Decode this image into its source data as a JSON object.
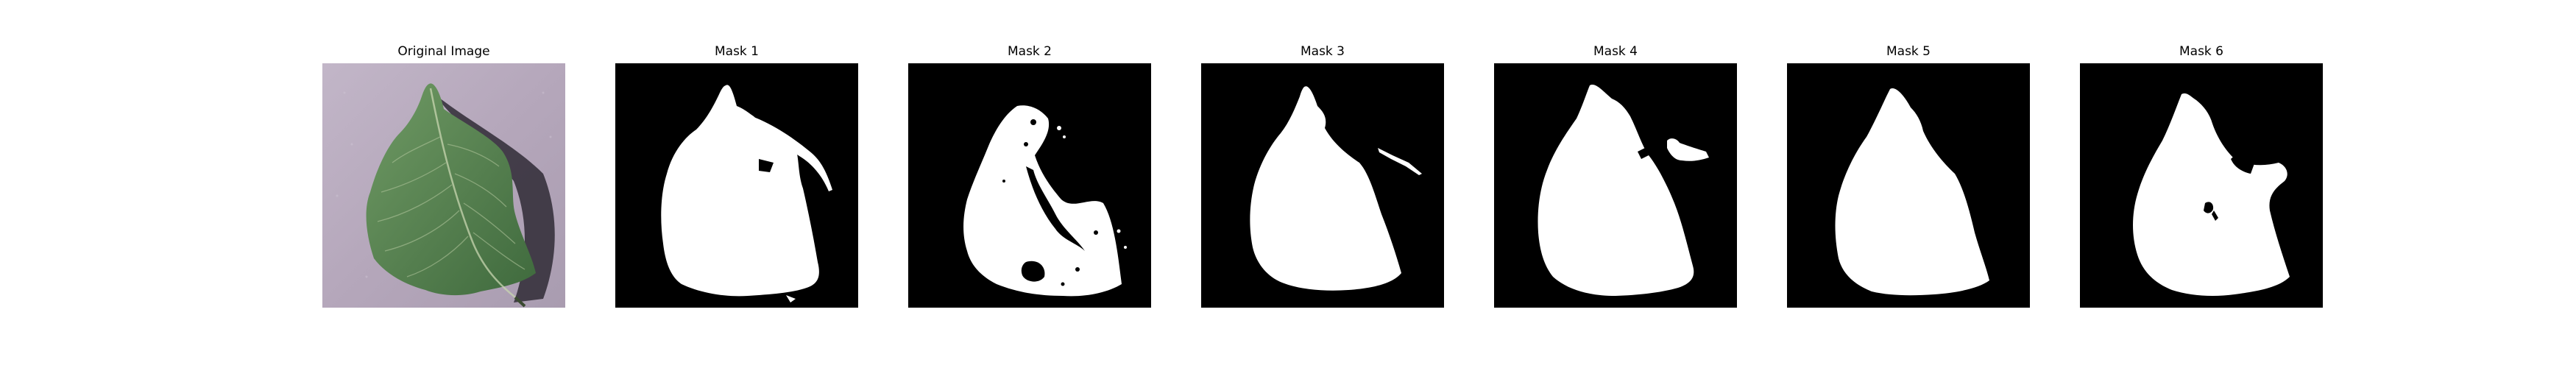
{
  "figure": {
    "panels": [
      {
        "id": "original",
        "title": "Original Image",
        "kind": "photo",
        "subject": "leaf"
      },
      {
        "id": "mask1",
        "title": "Mask 1",
        "kind": "mask"
      },
      {
        "id": "mask2",
        "title": "Mask 2",
        "kind": "mask"
      },
      {
        "id": "mask3",
        "title": "Mask 3",
        "kind": "mask"
      },
      {
        "id": "mask4",
        "title": "Mask 4",
        "kind": "mask"
      },
      {
        "id": "mask5",
        "title": "Mask 5",
        "kind": "mask"
      },
      {
        "id": "mask6",
        "title": "Mask 6",
        "kind": "mask"
      }
    ]
  },
  "colors": {
    "mask_background": "#000000",
    "mask_foreground": "#ffffff",
    "photo_background": "#b7a9bd",
    "leaf_green": "#5e8a58",
    "leaf_shadow": "#2f2a35"
  }
}
